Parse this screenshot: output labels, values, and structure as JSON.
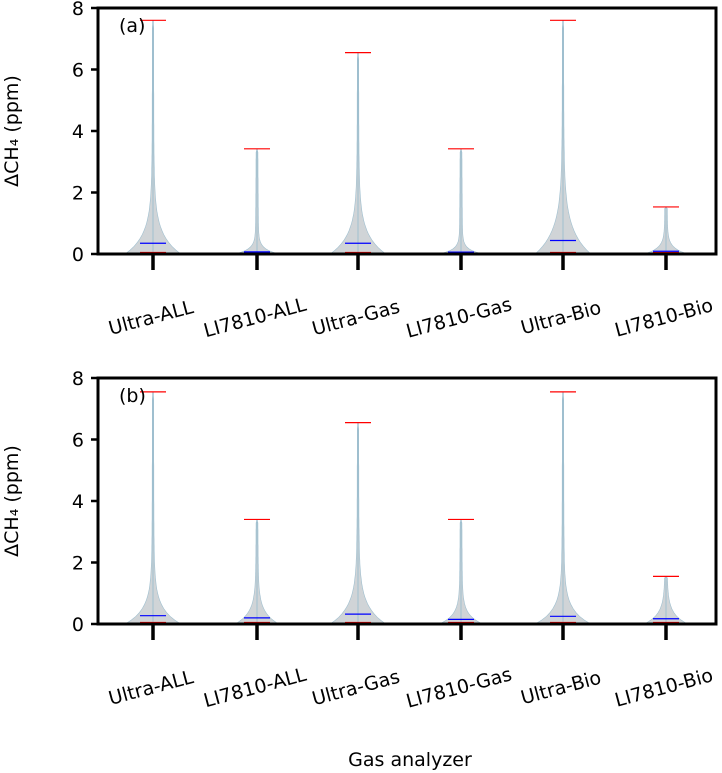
{
  "figure": {
    "xlabel": "Gas analyzer"
  },
  "colors": {
    "violin_fill": "#c8ccd0",
    "violin_edge": "#9fbfcf",
    "extrema": "#ff0000",
    "median": "#0000ff",
    "axis": "#000000"
  },
  "chart_data": [
    {
      "type": "violin",
      "panel_label": "(a)",
      "ylabel": "ΔCH₄ (ppm)",
      "ylim": [
        0,
        8
      ],
      "yticks": [
        "0",
        "2",
        "4",
        "6",
        "8"
      ],
      "categories": [
        "Ultra-ALL",
        "LI7810-ALL",
        "Ultra-Gas",
        "LI7810-Gas",
        "Ultra-Bio",
        "LI7810-Bio"
      ],
      "max": [
        7.6,
        3.42,
        6.55,
        3.42,
        7.6,
        1.53
      ],
      "min": [
        0.05,
        0.05,
        0.05,
        0.05,
        0.05,
        0.05
      ],
      "median": [
        0.35,
        0.07,
        0.35,
        0.06,
        0.44,
        0.09
      ]
    },
    {
      "type": "violin",
      "panel_label": "(b)",
      "ylabel": "ΔCH₄ (ppm)",
      "ylim": [
        0,
        8
      ],
      "yticks": [
        "0",
        "2",
        "4",
        "6",
        "8"
      ],
      "categories": [
        "Ultra-ALL",
        "LI7810-ALL",
        "Ultra-Gas",
        "LI7810-Gas",
        "Ultra-Bio",
        "LI7810-Bio"
      ],
      "max": [
        7.55,
        3.4,
        6.55,
        3.4,
        7.55,
        1.55
      ],
      "min": [
        0.05,
        0.05,
        0.05,
        0.05,
        0.05,
        0.05
      ],
      "median": [
        0.27,
        0.2,
        0.32,
        0.15,
        0.25,
        0.17
      ]
    }
  ]
}
